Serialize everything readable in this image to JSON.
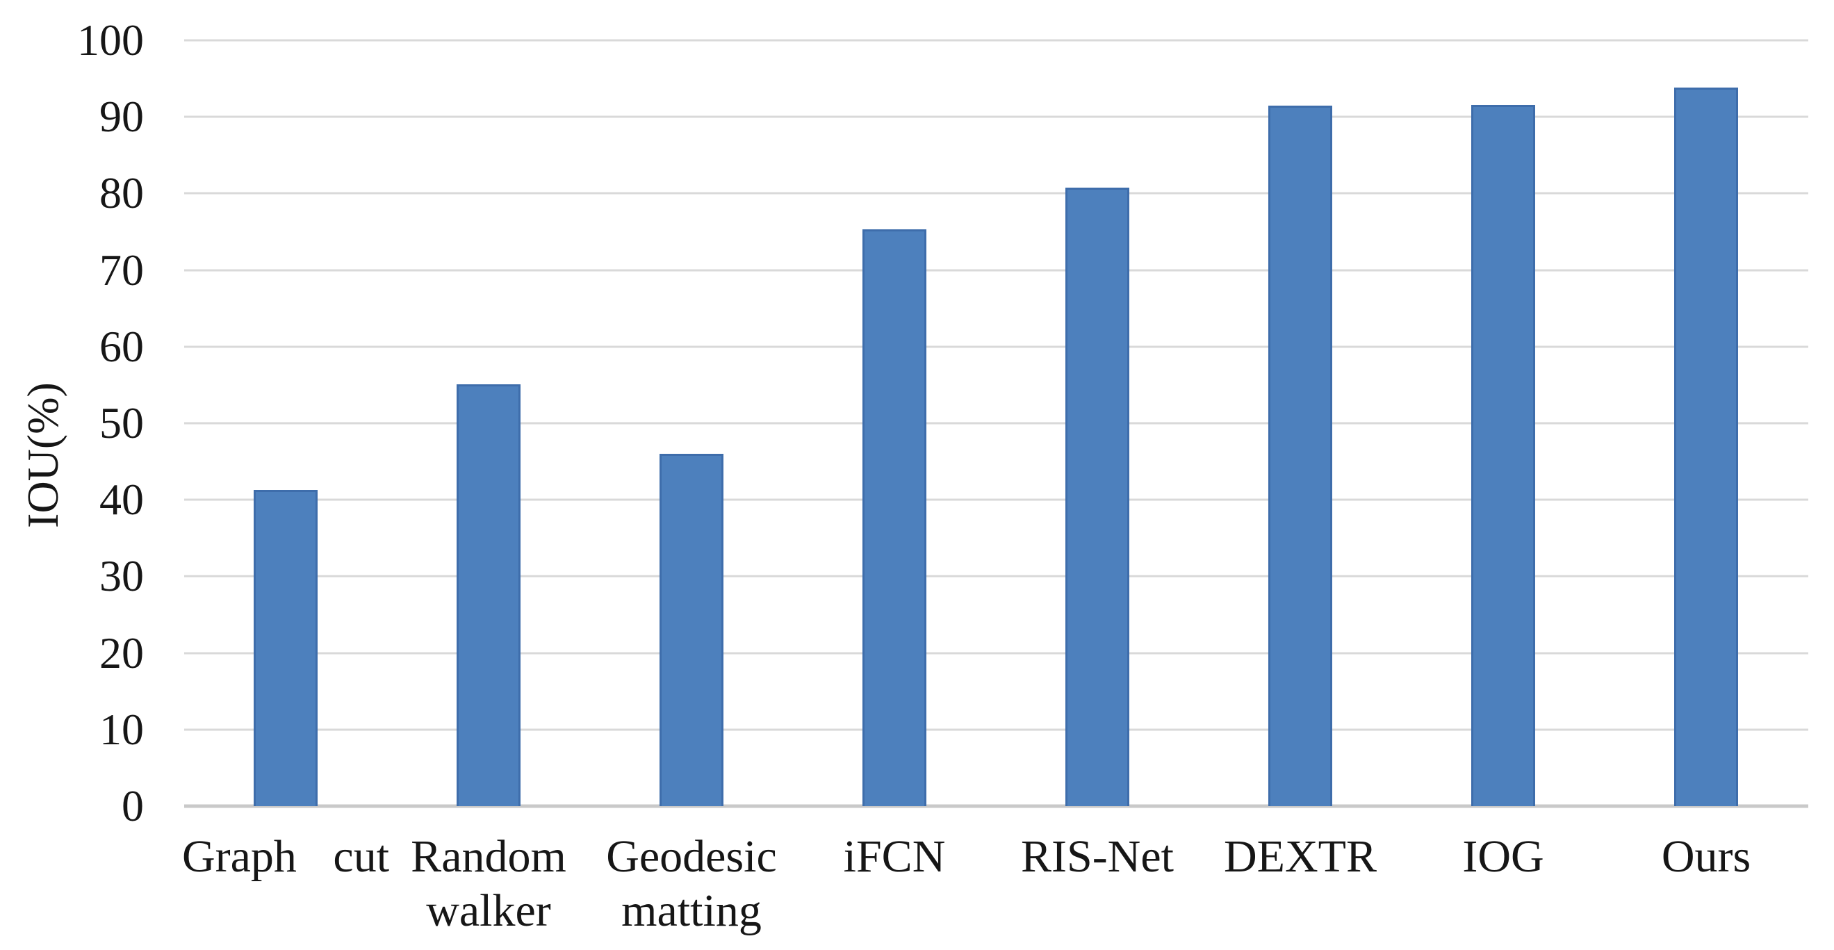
{
  "chart_data": {
    "type": "bar",
    "title": "",
    "ylabel": "IOU(%)",
    "xlabel": "",
    "categories": [
      "Graph cut",
      "Random walker",
      "Geodesic matting",
      "iFCN",
      "RIS-Net",
      "DEXTR",
      "IOG",
      "Ours"
    ],
    "values": [
      41.3,
      55.1,
      46.0,
      75.3,
      80.8,
      91.5,
      91.6,
      93.8
    ],
    "ylim": [
      0,
      100
    ],
    "yticks": [
      0,
      10,
      20,
      30,
      40,
      50,
      60,
      70,
      80,
      90,
      100
    ],
    "ytick_labels": [
      "0",
      "10",
      "20",
      "30",
      "40",
      "50",
      "60",
      "70",
      "80",
      "90",
      "100"
    ],
    "grid": true,
    "legend": "none",
    "colors": {
      "bar_fill": "#4d80bd",
      "bar_border": "#3e6dab",
      "gridline": "#d9d9d9",
      "axis_line": "#c9c9c9",
      "text": "#161616"
    }
  }
}
